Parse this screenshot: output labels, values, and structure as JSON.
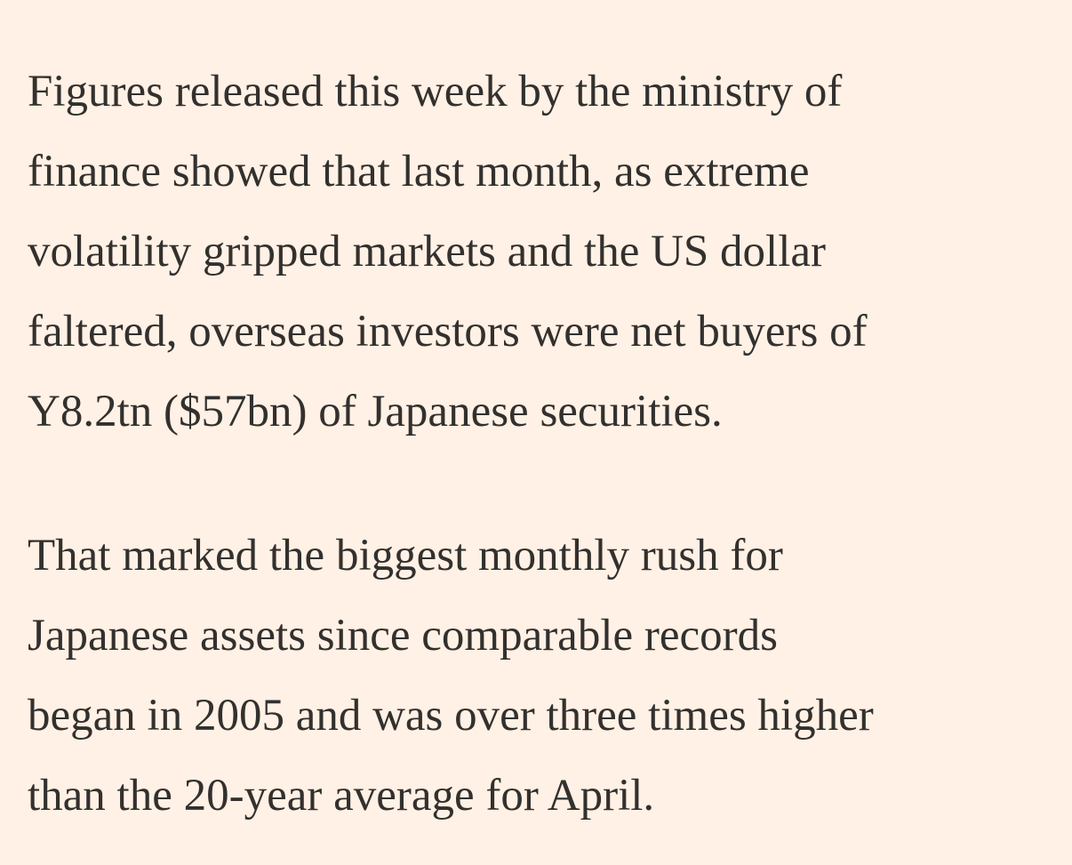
{
  "article": {
    "paragraphs": [
      {
        "lines": [
          "Figures released this week by the ministry of",
          "finance showed that last month, as extreme",
          "volatility gripped markets and the US dollar",
          "faltered, overseas investors were net buyers of",
          "Y8.2tn ($57bn) of Japanese securities."
        ]
      },
      {
        "lines": [
          "That marked the biggest monthly rush for",
          "Japanese assets since comparable records",
          "began in 2005 and was over three times higher",
          "than the 20-year average for April."
        ]
      }
    ]
  },
  "colors": {
    "background": "#fff1e5",
    "text": "#33302e"
  }
}
